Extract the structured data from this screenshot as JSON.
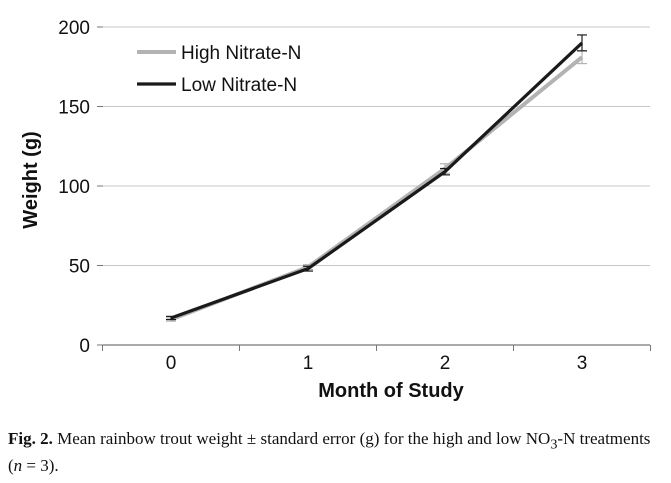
{
  "chart_data": {
    "type": "line",
    "xlabel": "Month of Study",
    "ylabel": "Weight (g)",
    "x": [
      0,
      1,
      2,
      3
    ],
    "x_ticks": [
      "0",
      "1",
      "2",
      "3"
    ],
    "y_ticks": [
      "0",
      "50",
      "100",
      "150",
      "200"
    ],
    "ylim": [
      0,
      200
    ],
    "grid": "horizontal",
    "legend_position": "top-left",
    "series": [
      {
        "name": "High Nitrate-N",
        "color": "#b3b3b3",
        "values": [
          16,
          49,
          111,
          181
        ],
        "errors": [
          1,
          1.5,
          3,
          4
        ]
      },
      {
        "name": "Low Nitrate-N",
        "color": "#1a1a1a",
        "values": [
          17,
          48,
          109,
          190
        ],
        "errors": [
          1,
          1.5,
          2,
          5
        ]
      }
    ]
  },
  "caption": {
    "label": "Fig. 2.",
    "text": " Mean rainbow trout weight ± standard error (g) for the high and low NO",
    "subscript": "3",
    "text_after": "-N treatments (",
    "n_italic": "n",
    "text_end": " = 3)."
  }
}
